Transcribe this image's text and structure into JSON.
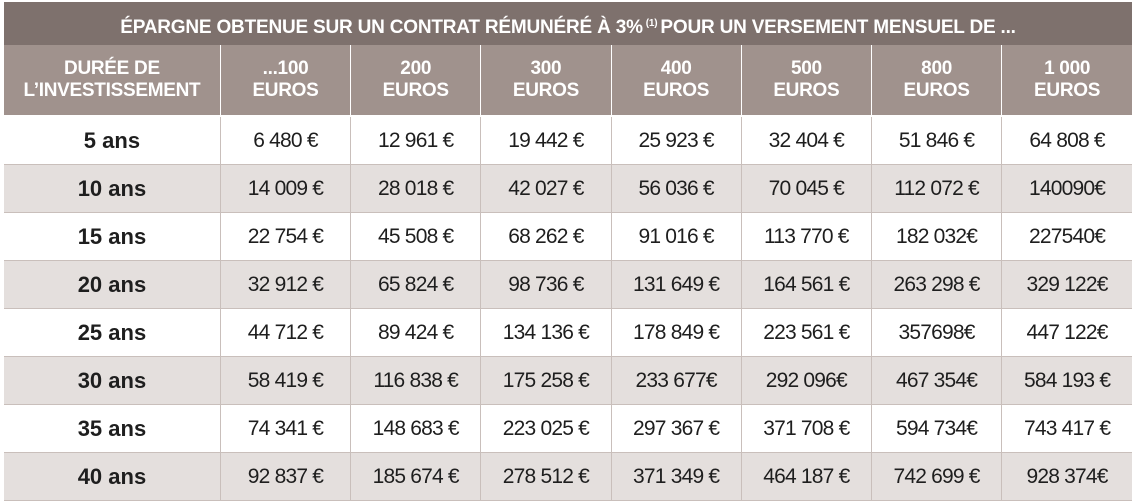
{
  "title": {
    "before": "ÉPARGNE OBTENUE SUR UN CONTRAT RÉMUNÉRÉ À 3%",
    "note": "(1)",
    "after": "POUR UN VERSEMENT MENSUEL DE ..."
  },
  "header": {
    "duration": {
      "line1": "DURÉE DE",
      "line2": "L’INVESTISSEMENT"
    },
    "amounts": [
      {
        "line1": "...100",
        "line2": "EUROS"
      },
      {
        "line1": "200",
        "line2": "EUROS"
      },
      {
        "line1": "300",
        "line2": "EUROS"
      },
      {
        "line1": "400",
        "line2": "EUROS"
      },
      {
        "line1": "500",
        "line2": "EUROS"
      },
      {
        "line1": "800",
        "line2": "EUROS"
      },
      {
        "line1": "1 000",
        "line2": "EUROS"
      }
    ]
  },
  "rows": [
    {
      "duration": "5 ans",
      "values": [
        "6 480 €",
        "12 961 €",
        "19 442 €",
        "25 923 €",
        "32 404 €",
        "51 846 €",
        "64 808 €"
      ]
    },
    {
      "duration": "10 ans",
      "values": [
        "14 009 €",
        "28 018 €",
        "42 027 €",
        "56 036 €",
        "70 045 €",
        "112 072 €",
        "140090€"
      ]
    },
    {
      "duration": "15 ans",
      "values": [
        "22 754 €",
        "45 508 €",
        "68 262 €",
        "91 016 €",
        "113 770 €",
        "182 032€",
        "227540€"
      ]
    },
    {
      "duration": "20 ans",
      "values": [
        "32 912 €",
        "65 824 €",
        "98 736 €",
        "131 649 €",
        "164 561 €",
        "263 298 €",
        "329 122€"
      ]
    },
    {
      "duration": "25 ans",
      "values": [
        "44 712 €",
        "89 424 €",
        "134 136 €",
        "178 849 €",
        "223 561 €",
        "357698€",
        "447 122€"
      ]
    },
    {
      "duration": "30 ans",
      "values": [
        "58 419 €",
        "116 838 €",
        "175 258 €",
        "233 677€",
        "292 096€",
        "467 354€",
        "584 193 €"
      ]
    },
    {
      "duration": "35 ans",
      "values": [
        "74 341 €",
        "148 683 €",
        "223 025 €",
        "297 367 €",
        "371 708 €",
        "594 734€",
        "743 417 €"
      ]
    },
    {
      "duration": "40 ans",
      "values": [
        "92 837 €",
        "185 674 €",
        "278 512 €",
        "371 349 €",
        "464 187 €",
        "742 699 €",
        "928 374€"
      ]
    }
  ]
}
